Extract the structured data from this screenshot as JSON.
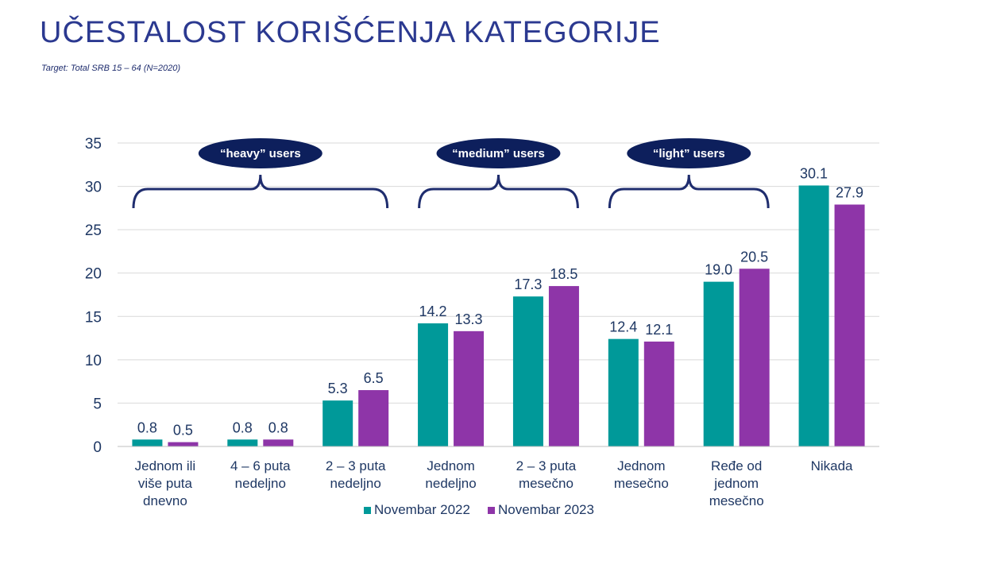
{
  "page": {
    "title": "UČESTALOST KORIŠĆENJA KATEGORIJE",
    "subtitle": "Target: Total SRB 15 – 64 (N=2020)"
  },
  "groups": [
    {
      "label": "“heavy” users",
      "from": 0,
      "to": 2
    },
    {
      "label": "“medium” users",
      "from": 3,
      "to": 4
    },
    {
      "label": "“light” users",
      "from": 5,
      "to": 6
    }
  ],
  "chart_data": {
    "type": "bar",
    "categories": [
      [
        "Jednom ili",
        "više puta",
        "dnevno"
      ],
      [
        "4 – 6 puta",
        "nedeljno"
      ],
      [
        "2 – 3 puta",
        "nedeljno"
      ],
      [
        "Jednom",
        "nedeljno"
      ],
      [
        "2 – 3 puta",
        "mesečno"
      ],
      [
        "Jednom",
        "mesečno"
      ],
      [
        "Ređe od",
        "jednom",
        "mesečno"
      ],
      [
        "Nikada"
      ]
    ],
    "series": [
      {
        "name": "Novembar 2022",
        "color": "#009999",
        "values": [
          0.8,
          0.8,
          5.3,
          14.2,
          17.3,
          12.4,
          19.0,
          30.1
        ]
      },
      {
        "name": "Novembar 2023",
        "color": "#8e35a8",
        "values": [
          0.5,
          0.8,
          6.5,
          13.3,
          18.5,
          12.1,
          20.5,
          27.9
        ]
      }
    ],
    "ylim": [
      0,
      35
    ],
    "yticks": [
      0,
      5,
      10,
      15,
      20,
      25,
      30,
      35
    ],
    "grid": true,
    "legend": "bottom"
  }
}
